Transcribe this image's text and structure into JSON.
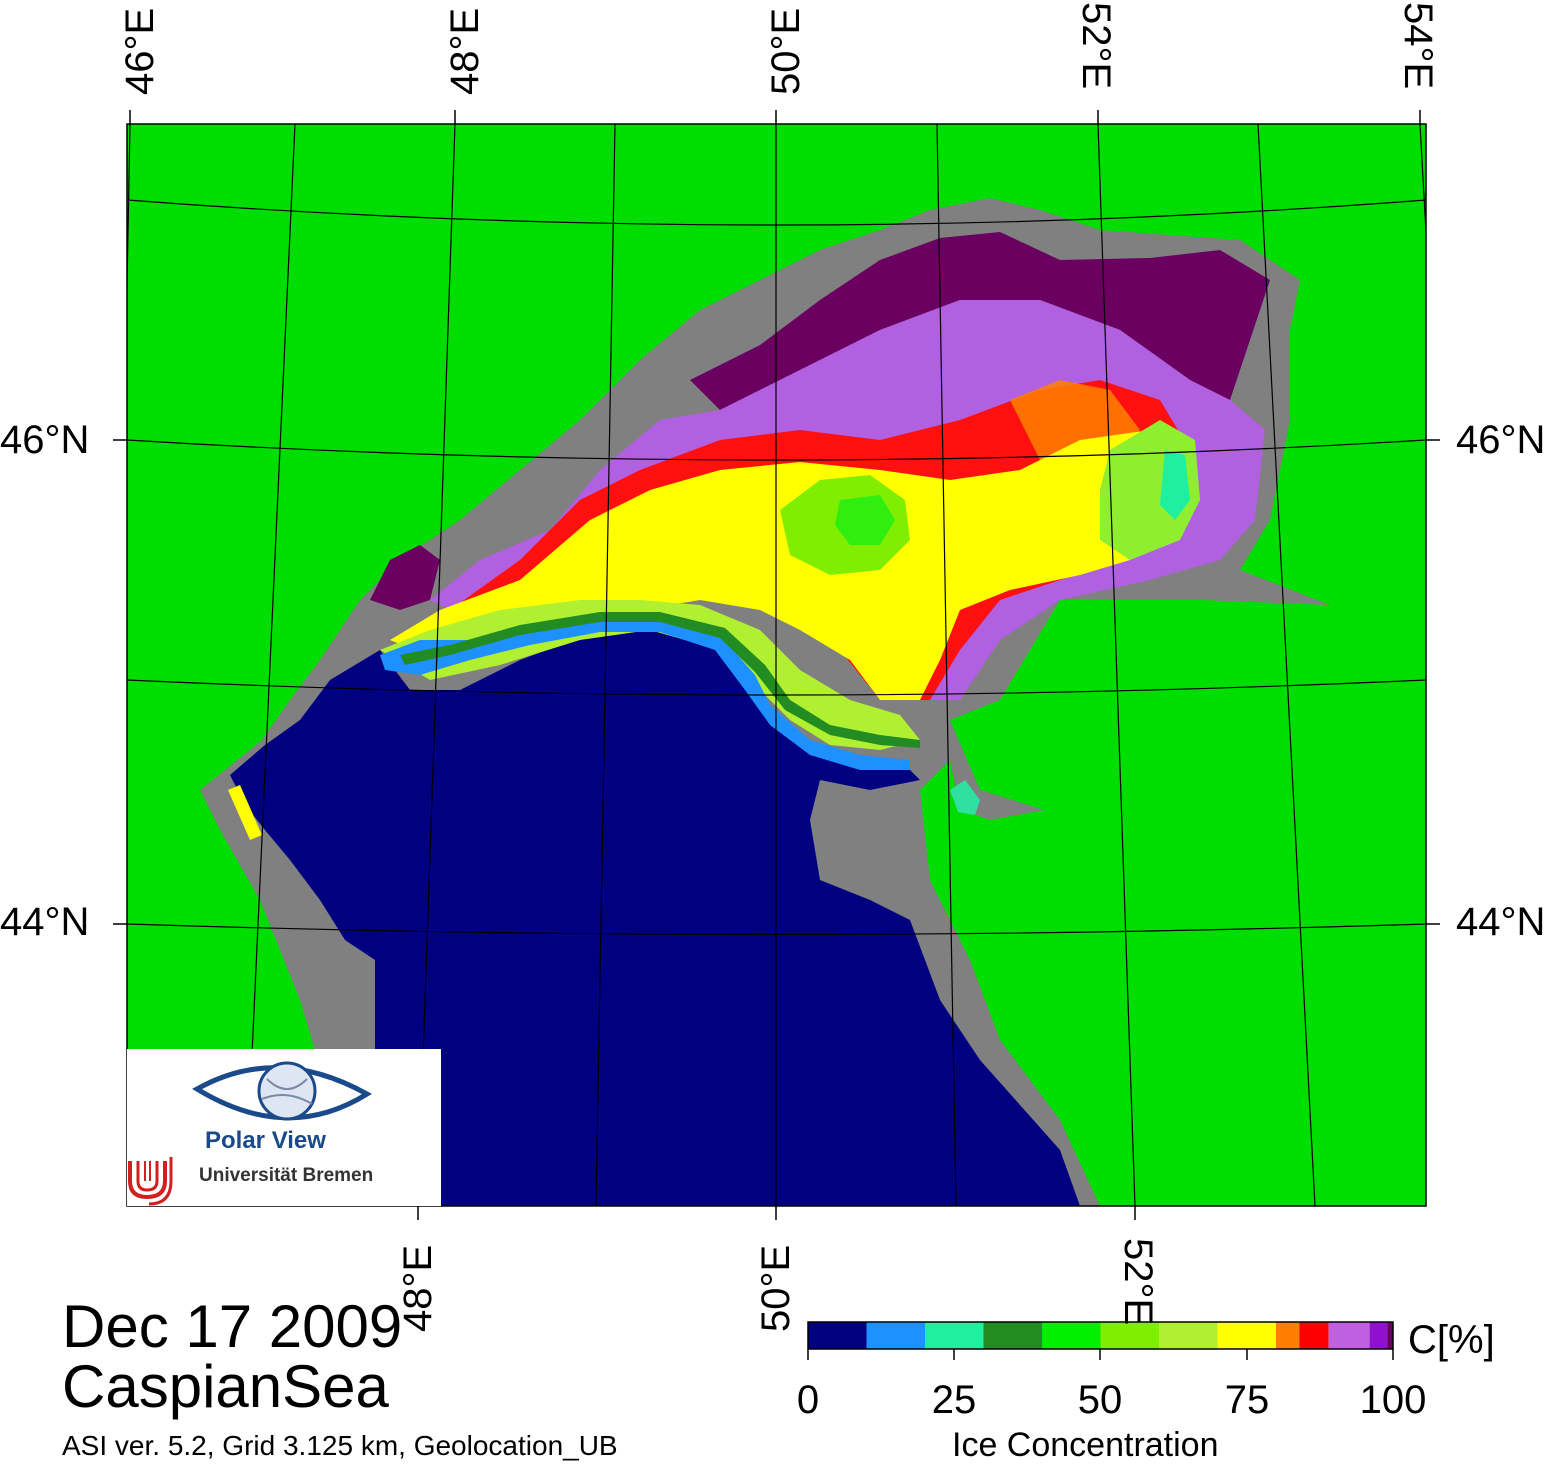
{
  "map": {
    "longitude_labels_top": [
      "46°E",
      "48°E",
      "50°E",
      "52°E",
      "54°E"
    ],
    "longitude_labels_bottom": [
      "48°E",
      "50°E",
      "52°E"
    ],
    "latitude_labels_left": [
      "46°N",
      "44°N"
    ],
    "latitude_labels_right": [
      "46°N",
      "44°N"
    ],
    "colors": {
      "land": "#00dd00",
      "coast": "#808080",
      "open_water": "#000080"
    }
  },
  "logo": {
    "name": "Polar View",
    "institution": "Universität Bremen",
    "icon": "eye-globe-icon"
  },
  "footer": {
    "date": "Dec 17 2009",
    "region": "CaspianSea",
    "product": "ASI ver. 5.2,  Grid 3.125 km, Geolocation_UB"
  },
  "colorbar": {
    "unit": "C[%]",
    "title": "Ice Concentration",
    "tick_labels": [
      "0",
      "25",
      "50",
      "75",
      "100"
    ],
    "bins": [
      {
        "from": 0,
        "to": 10,
        "color": "#000080"
      },
      {
        "from": 10,
        "to": 20,
        "color": "#1e90ff"
      },
      {
        "from": 20,
        "to": 30,
        "color": "#1ef0a0"
      },
      {
        "from": 30,
        "to": 40,
        "color": "#228b22"
      },
      {
        "from": 40,
        "to": 50,
        "color": "#00ee00"
      },
      {
        "from": 50,
        "to": 60,
        "color": "#80ee00"
      },
      {
        "from": 60,
        "to": 70,
        "color": "#b0f030"
      },
      {
        "from": 70,
        "to": 80,
        "color": "#ffff00"
      },
      {
        "from": 80,
        "to": 84,
        "color": "#ff8000"
      },
      {
        "from": 84,
        "to": 89,
        "color": "#ff0000"
      },
      {
        "from": 89,
        "to": 96,
        "color": "#c060e0"
      },
      {
        "from": 96,
        "to": 99,
        "color": "#9010d0"
      },
      {
        "from": 99,
        "to": 100,
        "color": "#6a0060"
      }
    ]
  }
}
